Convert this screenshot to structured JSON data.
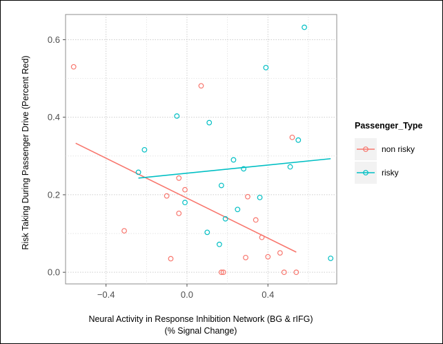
{
  "chart_data": {
    "type": "scatter",
    "title": "",
    "xlabel": [
      "Neural Activity in Response Inhibition Network (BG & rIFG)",
      "(% Signal Change)"
    ],
    "ylabel": "Risk Taking During Passenger Drive (Percent Red)",
    "xlim": [
      -0.6,
      0.74
    ],
    "ylim": [
      -0.03,
      0.665
    ],
    "x_ticks": [
      -0.4,
      0.0,
      0.4
    ],
    "x_tick_labels": [
      "−0.4",
      "0.0",
      "0.4"
    ],
    "y_ticks": [
      0.0,
      0.2,
      0.4,
      0.6
    ],
    "y_tick_labels": [
      "0.0",
      "0.2",
      "0.4",
      "0.6"
    ],
    "grid": true,
    "legend": {
      "title": "Passenger_Type",
      "placement": "right",
      "entries": [
        "non risky",
        "risky"
      ]
    },
    "series": [
      {
        "name": "non risky",
        "color": "#F8766D",
        "points": [
          {
            "x": -0.56,
            "y": 0.53
          },
          {
            "x": -0.31,
            "y": 0.107
          },
          {
            "x": -0.1,
            "y": 0.197
          },
          {
            "x": -0.08,
            "y": 0.035
          },
          {
            "x": -0.04,
            "y": 0.243
          },
          {
            "x": -0.04,
            "y": 0.152
          },
          {
            "x": -0.01,
            "y": 0.213
          },
          {
            "x": 0.07,
            "y": 0.481
          },
          {
            "x": 0.17,
            "y": 0.0
          },
          {
            "x": 0.18,
            "y": 0.0
          },
          {
            "x": 0.29,
            "y": 0.038
          },
          {
            "x": 0.3,
            "y": 0.195
          },
          {
            "x": 0.34,
            "y": 0.135
          },
          {
            "x": 0.37,
            "y": 0.09
          },
          {
            "x": 0.4,
            "y": 0.04
          },
          {
            "x": 0.46,
            "y": 0.05
          },
          {
            "x": 0.48,
            "y": 0.0
          },
          {
            "x": 0.52,
            "y": 0.348
          },
          {
            "x": 0.54,
            "y": 0.0
          }
        ],
        "fit": {
          "x": [
            -0.55,
            0.54
          ],
          "y": [
            0.333,
            0.052
          ]
        }
      },
      {
        "name": "risky",
        "color": "#00BFC4",
        "points": [
          {
            "x": -0.24,
            "y": 0.258
          },
          {
            "x": -0.21,
            "y": 0.316
          },
          {
            "x": -0.05,
            "y": 0.403
          },
          {
            "x": -0.01,
            "y": 0.18
          },
          {
            "x": 0.1,
            "y": 0.103
          },
          {
            "x": 0.11,
            "y": 0.386
          },
          {
            "x": 0.16,
            "y": 0.072
          },
          {
            "x": 0.17,
            "y": 0.224
          },
          {
            "x": 0.19,
            "y": 0.138
          },
          {
            "x": 0.23,
            "y": 0.29
          },
          {
            "x": 0.25,
            "y": 0.162
          },
          {
            "x": 0.28,
            "y": 0.267
          },
          {
            "x": 0.36,
            "y": 0.193
          },
          {
            "x": 0.39,
            "y": 0.528
          },
          {
            "x": 0.51,
            "y": 0.272
          },
          {
            "x": 0.55,
            "y": 0.341
          },
          {
            "x": 0.58,
            "y": 0.632
          },
          {
            "x": 0.71,
            "y": 0.036
          }
        ],
        "fit": {
          "x": [
            -0.24,
            0.71
          ],
          "y": [
            0.243,
            0.293
          ]
        }
      }
    ]
  }
}
